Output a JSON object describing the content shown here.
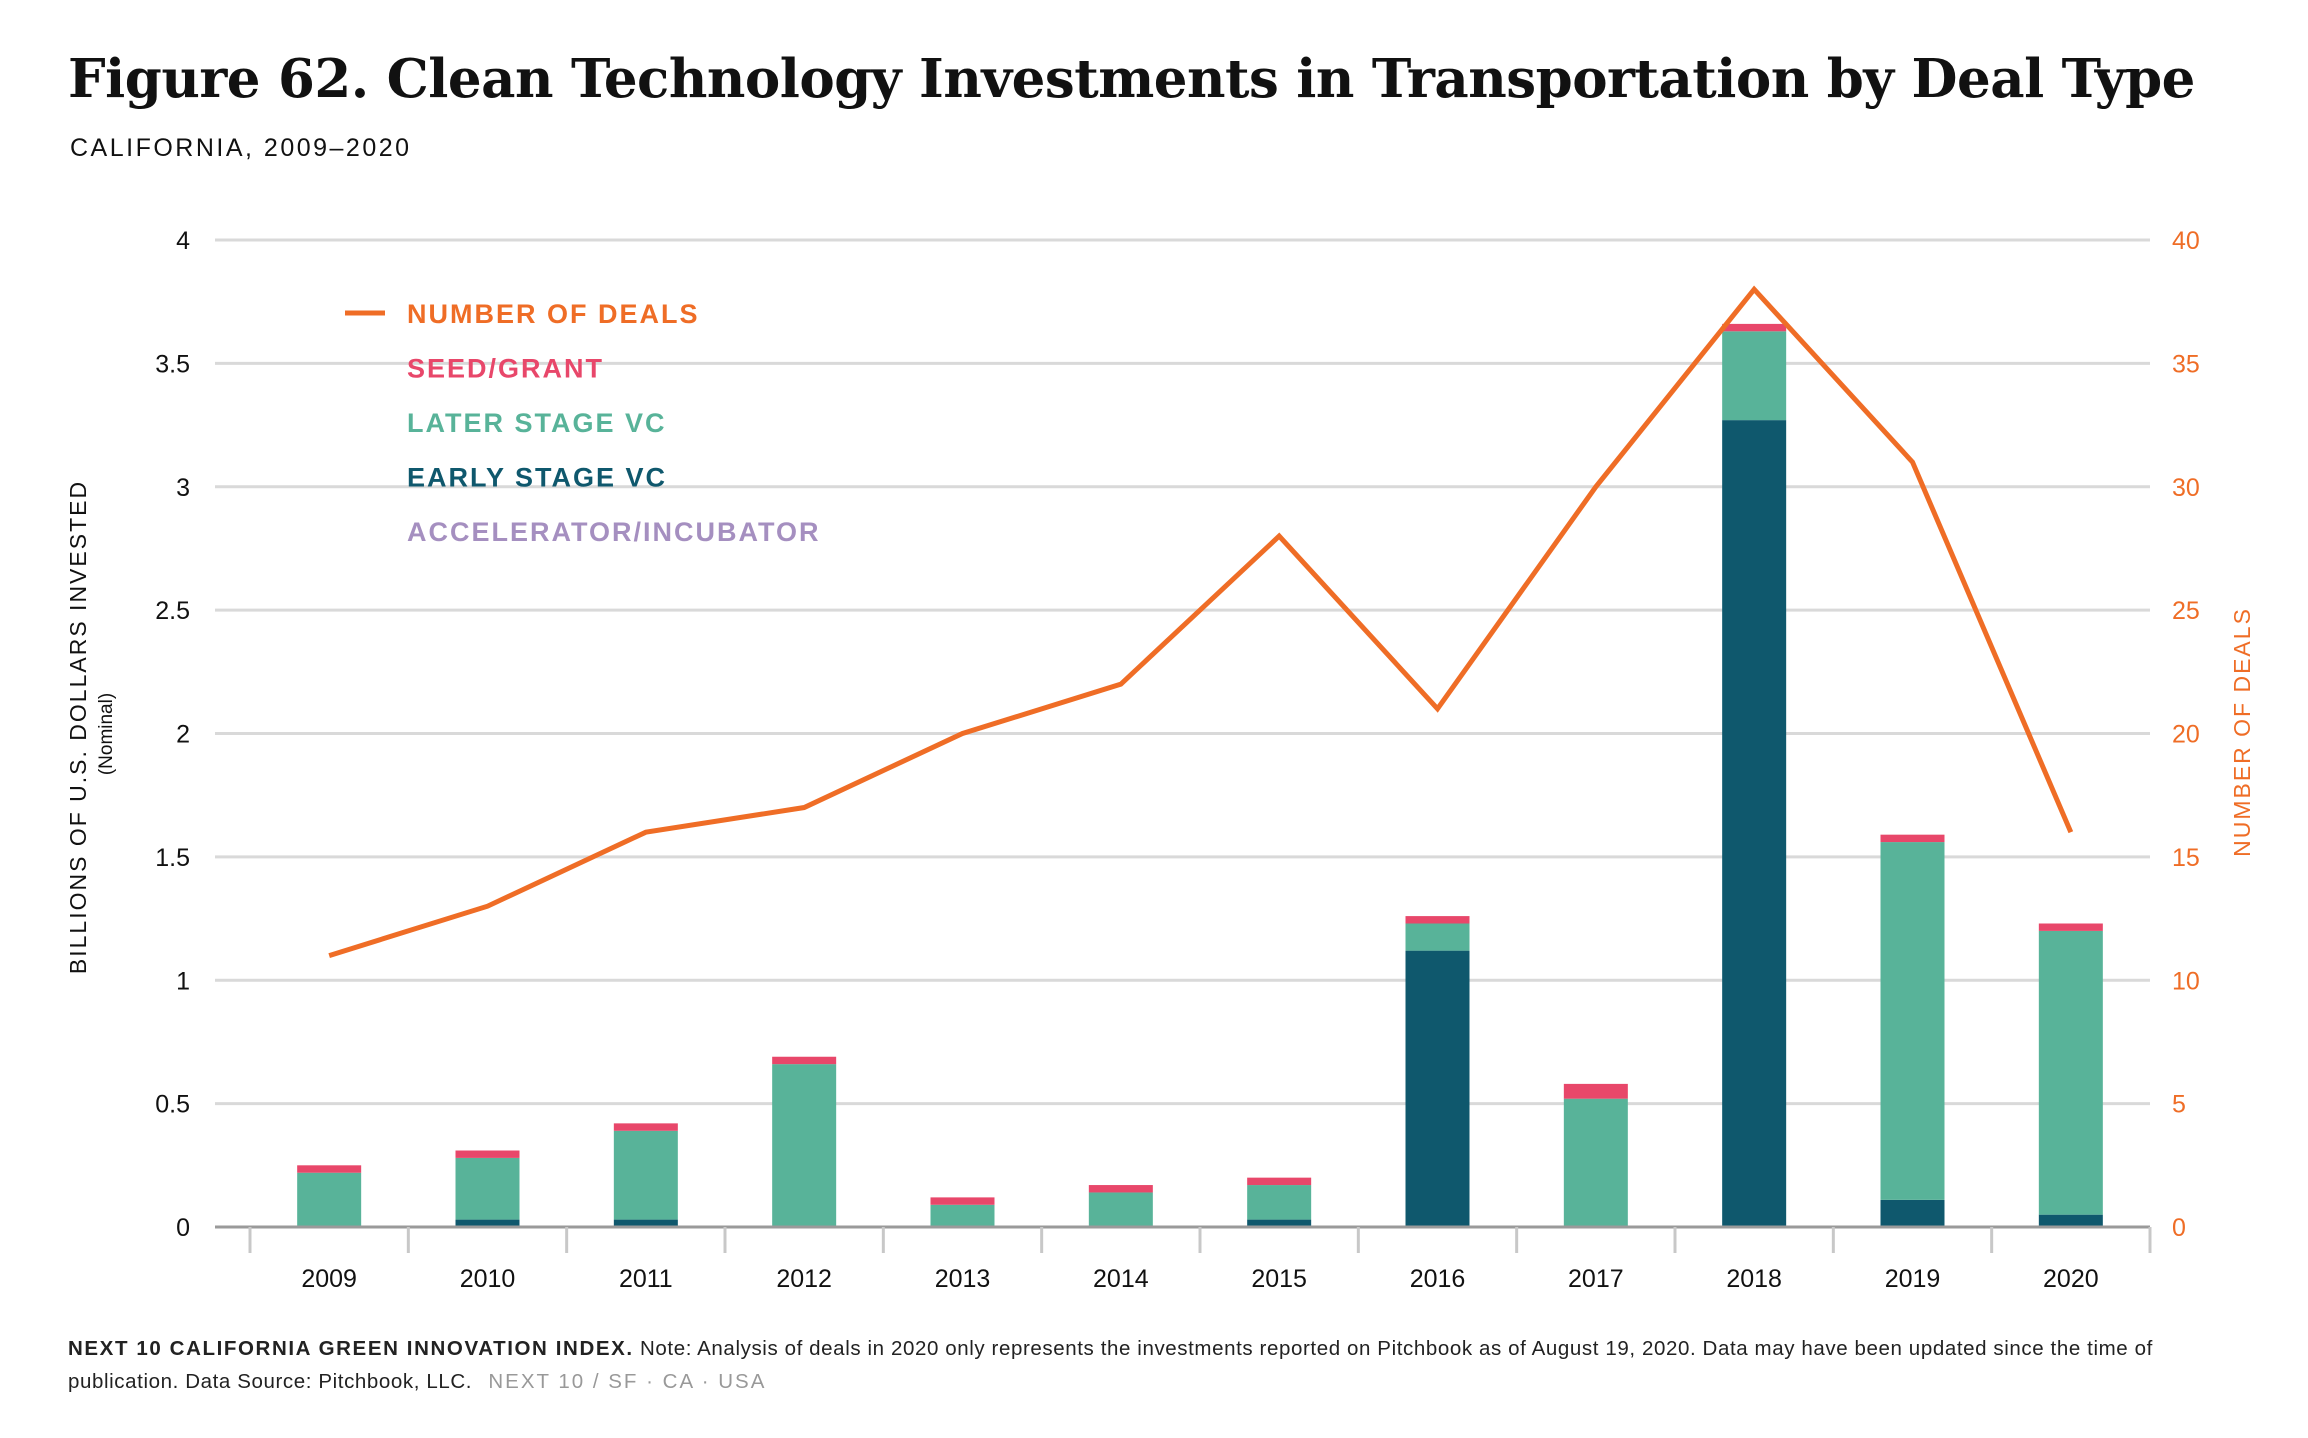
{
  "title": "Figure 62. Clean Technology Investments in Transportation by Deal Type",
  "subtitle": "CALIFORNIA, 2009–2020",
  "footer": {
    "brand": "NEXT 10 CALIFORNIA GREEN INNOVATION INDEX.",
    "note": "Note: Analysis of deals in 2020 only represents the investments reported on Pitchbook as of August 19, 2020. Data may have been updated since the time of publication. Data Source: Pitchbook, LLC.",
    "location": "NEXT 10  /  SF · CA · USA"
  },
  "chart_data": {
    "type": "bar",
    "stacked": true,
    "categories": [
      "2009",
      "2010",
      "2011",
      "2012",
      "2013",
      "2014",
      "2015",
      "2016",
      "2017",
      "2018",
      "2019",
      "2020"
    ],
    "ylabel": "BILLIONS OF U.S. DOLLARS INVESTED",
    "ylabel_sub": "(Nominal)",
    "y2label": "NUMBER OF DEALS",
    "ylim": [
      0,
      4
    ],
    "y2lim": [
      0,
      40
    ],
    "yticks": [
      "0",
      "0.5",
      "1",
      "1.5",
      "2",
      "2.5",
      "3",
      "3.5",
      "4"
    ],
    "y2ticks": [
      "0",
      "5",
      "10",
      "15",
      "20",
      "25",
      "30",
      "35",
      "40"
    ],
    "grid": true,
    "legend_position": "top-left",
    "series": [
      {
        "name": "ACCELERATOR/INCUBATOR",
        "kind": "bar",
        "color": "#a58fc0",
        "values": [
          0,
          0,
          0,
          0,
          0,
          0,
          0,
          0,
          0,
          0,
          0,
          0
        ]
      },
      {
        "name": "EARLY STAGE VC",
        "kind": "bar",
        "color": "#0f586d",
        "values": [
          0,
          0.03,
          0.03,
          0,
          0,
          0,
          0.03,
          1.12,
          0,
          3.27,
          0.11,
          0.05
        ]
      },
      {
        "name": "LATER STAGE VC",
        "kind": "bar",
        "color": "#58b399",
        "values": [
          0.22,
          0.25,
          0.36,
          0.66,
          0.09,
          0.14,
          0.14,
          0.11,
          0.52,
          0.36,
          1.45,
          1.15
        ]
      },
      {
        "name": "SEED/GRANT",
        "kind": "bar",
        "color": "#e8476a",
        "values": [
          0.03,
          0.03,
          0.03,
          0.03,
          0.03,
          0.03,
          0.03,
          0.03,
          0.06,
          0.03,
          0.03,
          0.03
        ]
      },
      {
        "name": "NUMBER OF DEALS",
        "kind": "line",
        "axis": "right",
        "color": "#ef6d26",
        "values": [
          11,
          13,
          16,
          17,
          20,
          22,
          28,
          21,
          30,
          38,
          31,
          16
        ]
      }
    ],
    "legend_order": [
      "NUMBER OF DEALS",
      "SEED/GRANT",
      "LATER STAGE VC",
      "EARLY STAGE VC",
      "ACCELERATOR/INCUBATOR"
    ]
  }
}
